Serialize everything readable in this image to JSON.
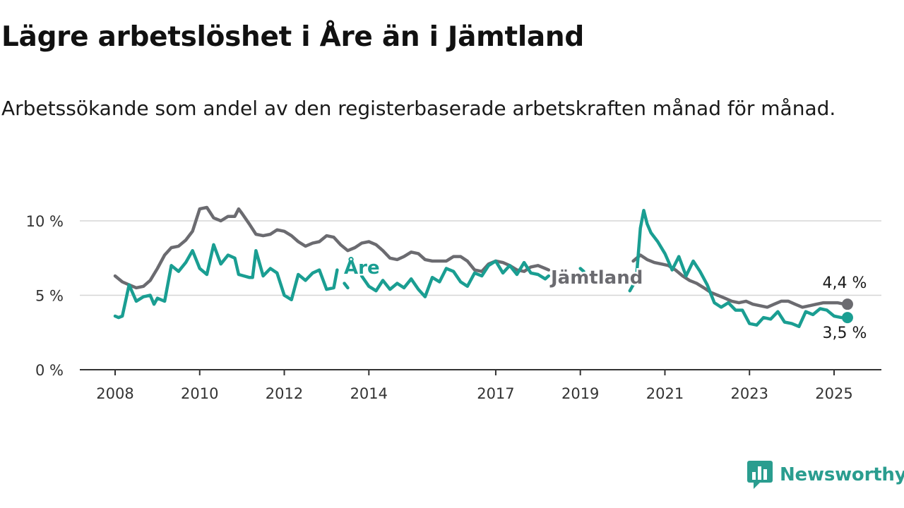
{
  "title": "Lägre arbetslöshet i Åre än i Jämtland",
  "subtitle": "Arbetssökande som andel av den registerbaserade arbetskraften månad för månad.",
  "brand": {
    "name": "Newsworthy",
    "color": "#2a9d8f",
    "icon": "bar-chart-icon"
  },
  "chart_data": {
    "type": "line",
    "x_unit": "year (decimal)",
    "ylim": [
      0,
      10.5
    ],
    "yticks": [
      0,
      5,
      10
    ],
    "ytick_labels": [
      "0 %",
      "5 %",
      "10 %"
    ],
    "xticks": [
      2008,
      2010,
      2012,
      2014,
      2017,
      2019,
      2021,
      2023,
      2025
    ],
    "grid": "horizontal",
    "series": [
      {
        "name": "Jämtland",
        "color": "#6b6b70",
        "end_label": "4,4 %",
        "points": [
          [
            2008.0,
            6.3
          ],
          [
            2008.17,
            5.9
          ],
          [
            2008.33,
            5.7
          ],
          [
            2008.5,
            5.5
          ],
          [
            2008.67,
            5.6
          ],
          [
            2008.83,
            6.0
          ],
          [
            2009.0,
            6.8
          ],
          [
            2009.17,
            7.7
          ],
          [
            2009.33,
            8.2
          ],
          [
            2009.5,
            8.3
          ],
          [
            2009.67,
            8.7
          ],
          [
            2009.83,
            9.3
          ],
          [
            2010.0,
            10.8
          ],
          [
            2010.17,
            10.9
          ],
          [
            2010.33,
            10.2
          ],
          [
            2010.5,
            10.0
          ],
          [
            2010.67,
            10.3
          ],
          [
            2010.83,
            10.3
          ],
          [
            2010.92,
            10.8
          ],
          [
            2011.0,
            10.5
          ],
          [
            2011.17,
            9.8
          ],
          [
            2011.33,
            9.1
          ],
          [
            2011.5,
            9.0
          ],
          [
            2011.67,
            9.1
          ],
          [
            2011.83,
            9.4
          ],
          [
            2012.0,
            9.3
          ],
          [
            2012.17,
            9.0
          ],
          [
            2012.33,
            8.6
          ],
          [
            2012.5,
            8.3
          ],
          [
            2012.67,
            8.5
          ],
          [
            2012.83,
            8.6
          ],
          [
            2013.0,
            9.0
          ],
          [
            2013.17,
            8.9
          ],
          [
            2013.33,
            8.4
          ],
          [
            2013.5,
            8.0
          ],
          [
            2013.67,
            8.2
          ],
          [
            2013.83,
            8.5
          ],
          [
            2014.0,
            8.6
          ],
          [
            2014.17,
            8.4
          ],
          [
            2014.33,
            8.0
          ],
          [
            2014.5,
            7.5
          ],
          [
            2014.67,
            7.4
          ],
          [
            2014.83,
            7.6
          ],
          [
            2015.0,
            7.9
          ],
          [
            2015.17,
            7.8
          ],
          [
            2015.33,
            7.4
          ],
          [
            2015.5,
            7.3
          ],
          [
            2015.67,
            7.3
          ],
          [
            2015.83,
            7.3
          ],
          [
            2016.0,
            7.6
          ],
          [
            2016.17,
            7.6
          ],
          [
            2016.33,
            7.3
          ],
          [
            2016.5,
            6.7
          ],
          [
            2016.67,
            6.6
          ],
          [
            2016.83,
            7.1
          ],
          [
            2017.0,
            7.3
          ],
          [
            2017.17,
            7.2
          ],
          [
            2017.33,
            7.0
          ],
          [
            2017.5,
            6.7
          ],
          [
            2017.67,
            6.6
          ],
          [
            2017.83,
            6.9
          ],
          [
            2018.0,
            7.0
          ],
          [
            2018.17,
            6.8
          ],
          [
            2018.25,
            6.7
          ],
          null,
          [
            2020.25,
            7.3
          ],
          [
            2020.42,
            7.7
          ],
          [
            2020.58,
            7.4
          ],
          [
            2020.75,
            7.2
          ],
          [
            2020.92,
            7.1
          ],
          [
            2021.08,
            7.0
          ],
          [
            2021.25,
            6.7
          ],
          [
            2021.42,
            6.3
          ],
          [
            2021.58,
            6.0
          ],
          [
            2021.75,
            5.8
          ],
          [
            2021.92,
            5.5
          ],
          [
            2022.08,
            5.2
          ],
          [
            2022.25,
            5.0
          ],
          [
            2022.42,
            4.8
          ],
          [
            2022.58,
            4.6
          ],
          [
            2022.75,
            4.5
          ],
          [
            2022.92,
            4.6
          ],
          [
            2023.08,
            4.4
          ],
          [
            2023.25,
            4.3
          ],
          [
            2023.42,
            4.2
          ],
          [
            2023.58,
            4.4
          ],
          [
            2023.75,
            4.6
          ],
          [
            2023.92,
            4.6
          ],
          [
            2024.08,
            4.4
          ],
          [
            2024.25,
            4.2
          ],
          [
            2024.42,
            4.3
          ],
          [
            2024.58,
            4.4
          ],
          [
            2024.75,
            4.5
          ],
          [
            2024.92,
            4.5
          ],
          [
            2025.08,
            4.5
          ],
          [
            2025.25,
            4.4
          ]
        ]
      },
      {
        "name": "Åre",
        "color": "#1a9e92",
        "end_label": "3,5 %",
        "points": [
          [
            2008.0,
            3.6
          ],
          [
            2008.08,
            3.5
          ],
          [
            2008.17,
            3.6
          ],
          [
            2008.33,
            5.7
          ],
          [
            2008.5,
            4.6
          ],
          [
            2008.67,
            4.9
          ],
          [
            2008.83,
            5.0
          ],
          [
            2008.92,
            4.4
          ],
          [
            2009.0,
            4.8
          ],
          [
            2009.17,
            4.6
          ],
          [
            2009.33,
            7.0
          ],
          [
            2009.5,
            6.6
          ],
          [
            2009.67,
            7.2
          ],
          [
            2009.83,
            8.0
          ],
          [
            2010.0,
            6.8
          ],
          [
            2010.17,
            6.4
          ],
          [
            2010.33,
            8.4
          ],
          [
            2010.5,
            7.1
          ],
          [
            2010.67,
            7.7
          ],
          [
            2010.83,
            7.5
          ],
          [
            2010.92,
            6.4
          ],
          [
            2011.17,
            6.2
          ],
          [
            2011.25,
            6.2
          ],
          [
            2011.33,
            8.0
          ],
          [
            2011.5,
            6.3
          ],
          [
            2011.67,
            6.8
          ],
          [
            2011.83,
            6.5
          ],
          [
            2012.0,
            5.0
          ],
          [
            2012.17,
            4.7
          ],
          [
            2012.33,
            6.4
          ],
          [
            2012.5,
            6.0
          ],
          [
            2012.67,
            6.5
          ],
          [
            2012.83,
            6.7
          ],
          [
            2013.0,
            5.4
          ],
          [
            2013.17,
            5.5
          ],
          [
            2013.25,
            6.7
          ],
          null,
          [
            2013.42,
            5.8
          ],
          [
            2013.5,
            5.5
          ],
          null,
          [
            2013.83,
            6.3
          ],
          [
            2014.0,
            5.6
          ],
          [
            2014.17,
            5.3
          ],
          [
            2014.33,
            6.0
          ],
          [
            2014.5,
            5.4
          ],
          [
            2014.67,
            5.8
          ],
          [
            2014.83,
            5.5
          ],
          [
            2015.0,
            6.1
          ],
          [
            2015.17,
            5.4
          ],
          [
            2015.33,
            4.9
          ],
          [
            2015.5,
            6.2
          ],
          [
            2015.67,
            5.9
          ],
          [
            2015.83,
            6.8
          ],
          [
            2016.0,
            6.6
          ],
          [
            2016.17,
            5.9
          ],
          [
            2016.33,
            5.6
          ],
          [
            2016.5,
            6.5
          ],
          [
            2016.67,
            6.3
          ],
          [
            2016.83,
            7.0
          ],
          [
            2017.0,
            7.3
          ],
          [
            2017.17,
            6.5
          ],
          [
            2017.33,
            7.0
          ],
          [
            2017.5,
            6.4
          ],
          [
            2017.67,
            7.2
          ],
          [
            2017.83,
            6.5
          ],
          [
            2018.0,
            6.4
          ],
          [
            2018.17,
            6.1
          ],
          [
            2018.25,
            6.3
          ],
          null,
          [
            2019.0,
            6.8
          ],
          [
            2019.08,
            6.6
          ],
          null,
          [
            2019.5,
            6.1
          ],
          [
            2019.67,
            6.3
          ],
          null,
          [
            2020.17,
            5.3
          ],
          [
            2020.25,
            5.7
          ],
          null,
          [
            2020.33,
            6.3
          ],
          [
            2020.42,
            9.5
          ],
          [
            2020.5,
            10.7
          ],
          [
            2020.58,
            9.8
          ],
          [
            2020.67,
            9.2
          ],
          [
            2020.83,
            8.6
          ],
          [
            2021.0,
            7.8
          ],
          [
            2021.17,
            6.7
          ],
          [
            2021.33,
            7.6
          ],
          [
            2021.5,
            6.3
          ],
          [
            2021.67,
            7.3
          ],
          [
            2021.83,
            6.6
          ],
          [
            2022.0,
            5.7
          ],
          [
            2022.17,
            4.5
          ],
          [
            2022.33,
            4.2
          ],
          [
            2022.5,
            4.5
          ],
          [
            2022.67,
            4.0
          ],
          [
            2022.83,
            4.0
          ],
          [
            2023.0,
            3.1
          ],
          [
            2023.17,
            3.0
          ],
          [
            2023.33,
            3.5
          ],
          [
            2023.5,
            3.4
          ],
          [
            2023.67,
            3.9
          ],
          [
            2023.83,
            3.2
          ],
          [
            2024.0,
            3.1
          ],
          [
            2024.17,
            2.9
          ],
          [
            2024.33,
            3.9
          ],
          [
            2024.5,
            3.7
          ],
          [
            2024.67,
            4.1
          ],
          [
            2024.83,
            4.0
          ],
          [
            2025.0,
            3.6
          ],
          [
            2025.17,
            3.5
          ],
          [
            2025.25,
            3.5
          ]
        ]
      }
    ]
  }
}
